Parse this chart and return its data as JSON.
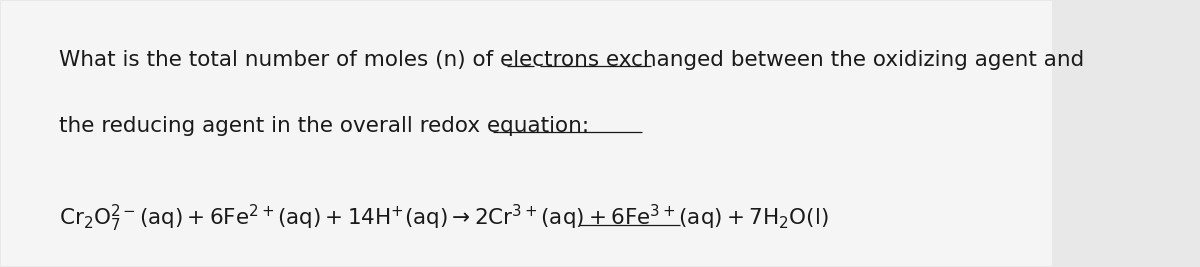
{
  "bg_color": "#e8e8e8",
  "card_color": "#f5f5f5",
  "text_color": "#1a1a1a",
  "font_size_body": 15.5,
  "font_size_equation": 15.5,
  "line1": "What is the total number of moles (n) of electrons exchanged between the oxidizing agent and",
  "line2": "the reducing agent in the overall redox equation:",
  "underline_segments_line1": [
    "(n)",
    "of electrons"
  ],
  "underline_segments_line2": [
    "redox equation:"
  ],
  "equation_latex": "$\\mathregular{Cr_2O_7^{2-}(aq) + 6Fe^{2+}(aq) + 14H^{+}(aq) \\rightarrow 2Cr^{3+}(aq) + 6Fe^{3+}(aq) + 7H_2O(l)}$"
}
